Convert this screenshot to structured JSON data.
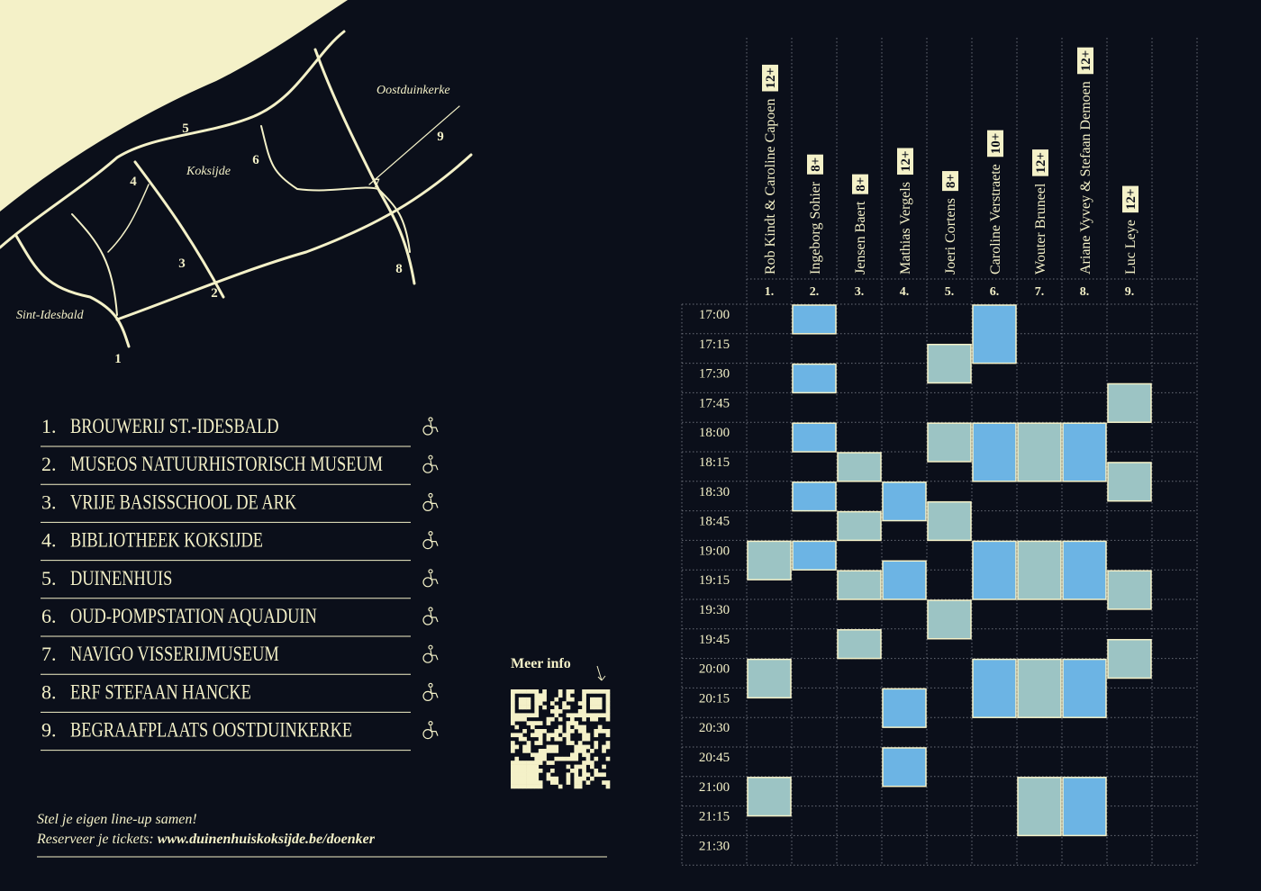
{
  "map": {
    "places": [
      "Oostduinkerke",
      "Koksijde",
      "Sint-Idesbald"
    ],
    "markers": [
      "1",
      "2",
      "3",
      "4",
      "5",
      "6",
      "7",
      "8",
      "9"
    ]
  },
  "locations": [
    {
      "number": "1.",
      "name": "BROUWERIJ ST.-IDESBALD"
    },
    {
      "number": "2.",
      "name": "MUSEOS NATUURHISTORISCH MUSEUM"
    },
    {
      "number": "3.",
      "name": "VRIJE BASISSCHOOL DE ARK"
    },
    {
      "number": "4.",
      "name": "BIBLIOTHEEK KOKSIJDE"
    },
    {
      "number": "5.",
      "name": "DUINENHUIS"
    },
    {
      "number": "6.",
      "name": "OUD-POMPSTATION AQUADUIN"
    },
    {
      "number": "7.",
      "name": "NAVIGO VISSERIJMUSEUM"
    },
    {
      "number": "8.",
      "name": "ERF STEFAAN HANCKE"
    },
    {
      "number": "9.",
      "name": "BEGRAAFPLAATS OOSTDUINKERKE"
    }
  ],
  "more_info": "Meer info",
  "footer": {
    "line1": "Stel je eigen line-up samen!",
    "line2_prefix": "Reserveer je tickets:",
    "url": "www.duinenhuiskoksijde.be/doenker"
  },
  "schedule": {
    "times": [
      "17:00",
      "17:15",
      "17:30",
      "17:45",
      "18:00",
      "18:15",
      "18:30",
      "18:45",
      "19:00",
      "19:15",
      "19:30",
      "19:45",
      "20:00",
      "20:15",
      "20:30",
      "20:45",
      "21:00",
      "21:15",
      "21:30"
    ],
    "artists": [
      {
        "number": "1.",
        "name": "Rob Kindt & Caroline Capoen",
        "age": "12+",
        "color": "#9cc4c4",
        "sessions": [
          {
            "start": "19:00",
            "end": "19:20"
          },
          {
            "start": "20:00",
            "end": "20:20"
          },
          {
            "start": "21:00",
            "end": "21:20"
          }
        ]
      },
      {
        "number": "2.",
        "name": "Ingeborg Sohier",
        "age": "8+",
        "color": "#6cb4e4",
        "sessions": [
          {
            "start": "17:00",
            "end": "17:15"
          },
          {
            "start": "17:30",
            "end": "17:45"
          },
          {
            "start": "18:00",
            "end": "18:15"
          },
          {
            "start": "18:30",
            "end": "18:45"
          },
          {
            "start": "19:00",
            "end": "19:15"
          }
        ]
      },
      {
        "number": "3.",
        "name": "Jensen Baert",
        "age": "8+",
        "color": "#9cc4c4",
        "sessions": [
          {
            "start": "18:15",
            "end": "18:30"
          },
          {
            "start": "18:45",
            "end": "19:00"
          },
          {
            "start": "19:15",
            "end": "19:30"
          },
          {
            "start": "19:45",
            "end": "20:00"
          }
        ]
      },
      {
        "number": "4.",
        "name": "Mathias Vergels",
        "age": "12+",
        "color": "#6cb4e4",
        "sessions": [
          {
            "start": "18:30",
            "end": "18:50"
          },
          {
            "start": "19:10",
            "end": "19:30"
          },
          {
            "start": "20:15",
            "end": "20:35"
          },
          {
            "start": "20:45",
            "end": "21:05"
          }
        ]
      },
      {
        "number": "5.",
        "name": "Joeri Cortens",
        "age": "8+",
        "color": "#9cc4c4",
        "sessions": [
          {
            "start": "17:20",
            "end": "17:40"
          },
          {
            "start": "18:00",
            "end": "18:20"
          },
          {
            "start": "18:40",
            "end": "19:00"
          },
          {
            "start": "19:30",
            "end": "19:50"
          }
        ]
      },
      {
        "number": "6.",
        "name": "Caroline Verstraete",
        "age": "10+",
        "color": "#6cb4e4",
        "sessions": [
          {
            "start": "17:00",
            "end": "17:30"
          },
          {
            "start": "18:00",
            "end": "18:30"
          },
          {
            "start": "19:00",
            "end": "19:30"
          },
          {
            "start": "20:00",
            "end": "20:30"
          }
        ]
      },
      {
        "number": "7.",
        "name": "Wouter Bruneel",
        "age": "12+",
        "color": "#9cc4c4",
        "sessions": [
          {
            "start": "18:00",
            "end": "18:30"
          },
          {
            "start": "19:00",
            "end": "19:30"
          },
          {
            "start": "20:00",
            "end": "20:30"
          },
          {
            "start": "21:00",
            "end": "21:30"
          }
        ]
      },
      {
        "number": "8.",
        "name": "Ariane Vyvey & Stefaan Demoen",
        "age": "12+",
        "color": "#6cb4e4",
        "sessions": [
          {
            "start": "18:00",
            "end": "18:30"
          },
          {
            "start": "19:00",
            "end": "19:30"
          },
          {
            "start": "20:00",
            "end": "20:30"
          },
          {
            "start": "21:00",
            "end": "21:30"
          }
        ]
      },
      {
        "number": "9.",
        "name": "Luc Leye",
        "age": "12+",
        "color": "#9cc4c4",
        "sessions": [
          {
            "start": "17:40",
            "end": "18:00"
          },
          {
            "start": "18:20",
            "end": "18:40"
          },
          {
            "start": "19:15",
            "end": "19:35"
          },
          {
            "start": "19:50",
            "end": "20:10"
          }
        ]
      }
    ]
  }
}
